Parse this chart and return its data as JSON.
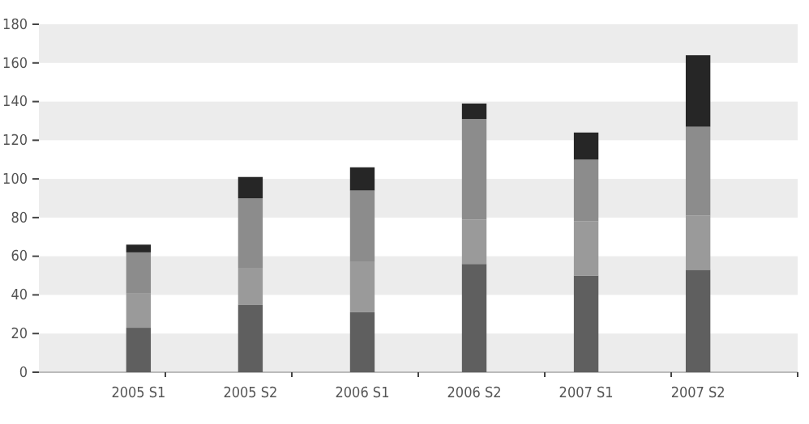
{
  "chart_data": {
    "type": "bar",
    "stacked": true,
    "categories": [
      "2005 S1",
      "2005 S2",
      "2006 S1",
      "2006 S2",
      "2007 S1",
      "2007 S2"
    ],
    "series": [
      {
        "color": "#5f5f5f",
        "values": [
          23,
          35,
          31,
          56,
          50,
          53
        ]
      },
      {
        "color": "#9a9a9a",
        "values": [
          18,
          19,
          26,
          23,
          28,
          28
        ]
      },
      {
        "color": "#8c8c8c",
        "values": [
          21,
          36,
          37,
          52,
          32,
          46
        ]
      },
      {
        "color": "#262626",
        "values": [
          4,
          11,
          12,
          8,
          14,
          37
        ]
      }
    ],
    "ylim": [
      0,
      180
    ],
    "yticks": [
      0,
      20,
      40,
      60,
      80,
      100,
      120,
      140,
      160,
      180
    ],
    "bands": [
      {
        "axis": "y",
        "from": 0,
        "to": 20,
        "color": "#ececec"
      },
      {
        "axis": "y",
        "from": 40,
        "to": 60,
        "color": "#ececec"
      },
      {
        "axis": "y",
        "from": 80,
        "to": 100,
        "color": "#ececec"
      },
      {
        "axis": "y",
        "from": 120,
        "to": 140,
        "color": "#ececec"
      },
      {
        "axis": "y",
        "from": 160,
        "to": 180,
        "color": "#ececec"
      }
    ]
  }
}
